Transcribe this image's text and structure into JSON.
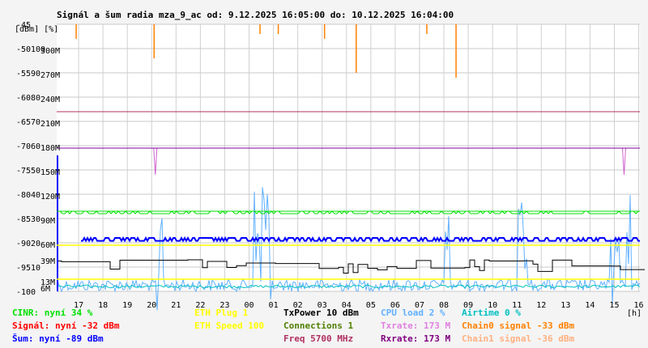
{
  "chart_data": {
    "type": "line",
    "title": "Signál a šum radia mza_9_ac od: 9.12.2025 16:05:00 do: 10.12.2025 16:04:00",
    "y_units_label": "[dBm]  [%]",
    "x_unit_label": "[h]",
    "grid": true,
    "axes": {
      "dbm": {
        "range": [
          -100,
          -45
        ],
        "ticks": [
          -45,
          -50,
          -55,
          -60,
          -65,
          -70,
          -75,
          -80,
          -85,
          -90,
          -95,
          -100
        ]
      },
      "percent": {
        "range": [
          0,
          110
        ],
        "ticks": [
          100,
          90,
          80,
          70,
          60,
          50,
          40,
          30,
          20,
          10
        ]
      },
      "rate": {
        "range": [
          0,
          330
        ],
        "ticks": [
          "300M",
          "270M",
          "240M",
          "210M",
          "180M",
          "150M",
          "120M",
          "90M",
          "60M",
          "39M",
          "13M",
          "6M"
        ]
      },
      "x_hours": {
        "range": [
          16.1,
          40.05
        ],
        "tick_labels": [
          "17",
          "18",
          "19",
          "20",
          "21",
          "22",
          "23",
          "00",
          "01",
          "02",
          "03",
          "04",
          "05",
          "06",
          "07",
          "08",
          "09",
          "10",
          "11",
          "12",
          "13",
          "14",
          "15",
          "16"
        ]
      }
    },
    "horizontal_lines": [
      {
        "name": "Freq 5700 MHz",
        "value_dbm": -63,
        "color": "#b03060"
      },
      {
        "name": "TxPower 10 dBm",
        "value_dbm": -70.5,
        "color": "#8000a0"
      },
      {
        "name": "CINR",
        "value_dbm": -83.5,
        "color": "#00e000"
      },
      {
        "name": "ETH Plug 1",
        "value_dbm": -90.5,
        "color": "#ffff00"
      },
      {
        "name": "ETH Speed 100",
        "value_dbm": -97.5,
        "color": "#ffff00"
      }
    ],
    "series": [
      {
        "name": "CINR: nyní 34 %",
        "color": "#00e000",
        "level_pct": 34
      },
      {
        "name": "Signál: nyní -32 dBm",
        "color": "#ff0000",
        "value_dbm": -32
      },
      {
        "name": "Šum: nyní -89 dBm",
        "color": "#0000ff",
        "level_dbm": -89
      },
      {
        "name": "ETH Plug 1",
        "color": "#ffff00"
      },
      {
        "name": "ETH Speed 100",
        "color": "#ffff00"
      },
      {
        "name": "TxPower 10 dBm",
        "color": "#000000"
      },
      {
        "name": "Connections 1",
        "color": "#508000"
      },
      {
        "name": "Freq 5700 MHz",
        "color": "#b03060"
      },
      {
        "name": "CPU load 2 %",
        "color": "#60b0ff",
        "level_pct": 2
      },
      {
        "name": "Txrate: 173 M",
        "color": "#e080e0",
        "value_mbps": 173
      },
      {
        "name": "Rxrate: 173 M",
        "color": "#800080",
        "value_mbps": 173
      },
      {
        "name": "Airtime 0 %",
        "color": "#00c0c0",
        "level_pct": 0
      },
      {
        "name": "Chain0 signal -33 dBm",
        "color": "#ff8000",
        "value_dbm": -33
      },
      {
        "name": "Chain1 signal -36 dBm",
        "color": "#ffb080",
        "value_dbm": -36
      }
    ],
    "spikes": {
      "chain_spikes_hours": [
        16.9,
        20.1,
        24.45,
        25.2,
        27.1,
        28.4,
        31.3,
        32.5
      ],
      "cpu_bursts_hours": [
        [
          20.2,
          20.45
        ],
        [
          24.2,
          24.9
        ],
        [
          32.05,
          32.25
        ],
        [
          35.0,
          35.4
        ],
        [
          38.8,
          39.2
        ],
        [
          39.5,
          39.7
        ]
      ],
      "purple_dips_hours": [
        20.15,
        39.4
      ]
    },
    "legend_placement": "bottom"
  },
  "legend": {
    "col1": [
      "CINR: nyní 34 %",
      "Signál: nyní -32 dBm",
      "Šum: nyní -89 dBm"
    ],
    "col2": [
      "ETH Plug 1",
      "ETH Speed 100"
    ],
    "col3": [
      "TxPower 10 dBm",
      "Connections 1",
      "Freq 5700 MHz"
    ],
    "col4": [
      "CPU load 2 %",
      "Txrate: 173 M",
      "Rxrate: 173 M"
    ],
    "col5": [
      "Airtime 0 %",
      "Chain0 signal -33 dBm",
      "Chain1 signal -36 dBm"
    ],
    "colors": {
      "col1": [
        "#00e000",
        "#ff0000",
        "#0000ff"
      ],
      "col2": [
        "#ffff00",
        "#ffff00"
      ],
      "col3": [
        "#000000",
        "#508000",
        "#b03060"
      ],
      "col4": [
        "#60b0ff",
        "#e080e0",
        "#800080"
      ],
      "col5": [
        "#00c0c0",
        "#ff8000",
        "#ffb080"
      ]
    }
  }
}
